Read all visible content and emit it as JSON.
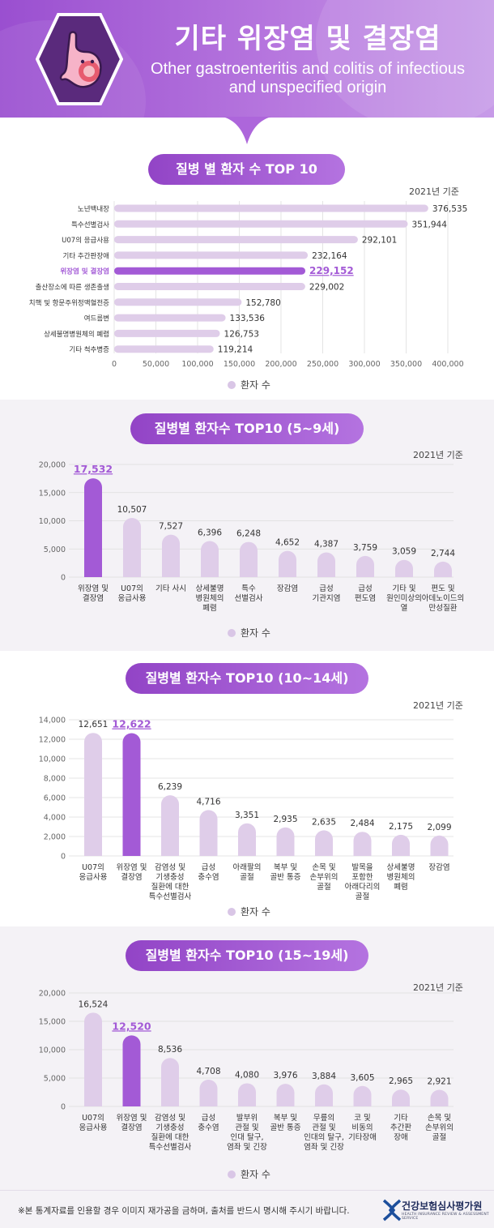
{
  "header": {
    "title_ko": "기타 위장염 및 결장염",
    "title_en_line1": "Other gastroenteritis and colitis of infectious",
    "title_en_line2": "and unspecified origin",
    "icon": "stomach-icon"
  },
  "colors": {
    "accent": "#a35ad6",
    "bar": "#dfcde9",
    "highlight_text": "#a35ad6",
    "grid": "#dddddd"
  },
  "footer": {
    "note": "※본 통계자료를 인용할 경우 이미지 재가공을 금하며, 출처를 반드시 명시해 주시기 바랍니다.",
    "org_name": "건강보험심사평가원",
    "org_sub": "HEALTH INSURANCE REVIEW & ASSESSMENT SERVICE"
  },
  "chart_data": [
    {
      "type": "bar",
      "orientation": "horizontal",
      "title": "질병 별 환자 수 TOP 10",
      "note": "2021년 기준",
      "legend": "환자 수",
      "categories": [
        "노년백내장",
        "특수선별검사",
        "U07의 응급사용",
        "기타 추간판장애",
        "위장염 및 결장염",
        "출산장소에 따른 생존출생",
        "치핵 및 항문주위정맥혈전증",
        "여드름변",
        "상세불명병원체의 폐렴",
        "기타 척추병증"
      ],
      "values": [
        376535,
        351944,
        292101,
        232164,
        229152,
        229002,
        152780,
        133536,
        126753,
        119214
      ],
      "labels": [
        "376,535",
        "351,944",
        "292,101",
        "232,164",
        "229,152",
        "229,002",
        "152,780",
        "133,536",
        "126,753",
        "119,214"
      ],
      "highlight_index": 4,
      "xlim": [
        0,
        400000
      ],
      "ticks": [
        "0",
        "50,000",
        "100,000",
        "150,000",
        "200,000",
        "250,000",
        "300,000",
        "350,000",
        "400,000"
      ]
    },
    {
      "type": "bar",
      "title": "질병별 환자수 TOP10 (5~9세)",
      "note": "2021년 기준",
      "legend": "환자 수",
      "categories": [
        [
          "위장염 및",
          "결장염"
        ],
        [
          "U07의",
          "응급사용"
        ],
        [
          "기타 사시"
        ],
        [
          "상세불명",
          "병원체의",
          "폐렴"
        ],
        [
          "특수",
          "선별검사"
        ],
        [
          "장감염"
        ],
        [
          "급성",
          "기관지염"
        ],
        [
          "급성",
          "편도염"
        ],
        [
          "기타 및",
          "원인미상의",
          "열"
        ],
        [
          "편도 및",
          "아데노이드의",
          "만성질환"
        ]
      ],
      "values": [
        17532,
        10507,
        7527,
        6396,
        6248,
        4652,
        4387,
        3759,
        3059,
        2744
      ],
      "labels": [
        "17,532",
        "10,507",
        "7,527",
        "6,396",
        "6,248",
        "4,652",
        "4,387",
        "3,759",
        "3,059",
        "2,744"
      ],
      "highlight_index": 0,
      "ylim": [
        0,
        20000
      ],
      "ticks": [
        "0",
        "5,000",
        "10,000",
        "15,000",
        "20,000"
      ]
    },
    {
      "type": "bar",
      "title": "질병별 환자수 TOP10 (10~14세)",
      "note": "2021년 기준",
      "legend": "환자 수",
      "categories": [
        [
          "U07의",
          "응급사용"
        ],
        [
          "위장염 및",
          "결장염"
        ],
        [
          "감염성 및",
          "기생충성",
          "질환에 대한",
          "특수선별검사"
        ],
        [
          "급성",
          "충수염"
        ],
        [
          "아래팔의",
          "골절"
        ],
        [
          "복부 및",
          "골반 통증"
        ],
        [
          "손목 및",
          "손부위의",
          "골절"
        ],
        [
          "발목을",
          "포함한",
          "아래다리의",
          "골절"
        ],
        [
          "상세불명",
          "병원체의",
          "폐렴"
        ],
        [
          "장감염"
        ]
      ],
      "values": [
        12651,
        12622,
        6239,
        4716,
        3351,
        2935,
        2635,
        2484,
        2175,
        2099
      ],
      "labels": [
        "12,651",
        "12,622",
        "6,239",
        "4,716",
        "3,351",
        "2,935",
        "2,635",
        "2,484",
        "2,175",
        "2,099"
      ],
      "highlight_index": 1,
      "ylim": [
        0,
        14000
      ],
      "ticks": [
        "0",
        "2,000",
        "4,000",
        "6,000",
        "8,000",
        "10,000",
        "12,000",
        "14,000"
      ]
    },
    {
      "type": "bar",
      "title": "질병별 환자수 TOP10 (15~19세)",
      "note": "2021년 기준",
      "legend": "환자 수",
      "categories": [
        [
          "U07의",
          "응급사용"
        ],
        [
          "위장염 및",
          "결장염"
        ],
        [
          "감염성 및",
          "기생충성",
          "질환에 대한",
          "특수선별검사"
        ],
        [
          "급성",
          "충수염"
        ],
        [
          "발부위",
          "관절 및",
          "인대 탈구,",
          "염좌 및 긴장"
        ],
        [
          "복부 및",
          "골반 통증"
        ],
        [
          "무릎의",
          "관절 및",
          "인대의 탈구,",
          "염좌 및 긴장"
        ],
        [
          "코 및",
          "비동의",
          "기타장애"
        ],
        [
          "기타",
          "추간판",
          "장애"
        ],
        [
          "손목 및",
          "손부위의",
          "골절"
        ]
      ],
      "values": [
        16524,
        12520,
        8536,
        4708,
        4080,
        3976,
        3884,
        3605,
        2965,
        2921
      ],
      "labels": [
        "16,524",
        "12,520",
        "8,536",
        "4,708",
        "4,080",
        "3,976",
        "3,884",
        "3,605",
        "2,965",
        "2,921"
      ],
      "highlight_index": 1,
      "ylim": [
        0,
        20000
      ],
      "ticks": [
        "0",
        "5,000",
        "10,000",
        "15,000",
        "20,000"
      ]
    }
  ]
}
